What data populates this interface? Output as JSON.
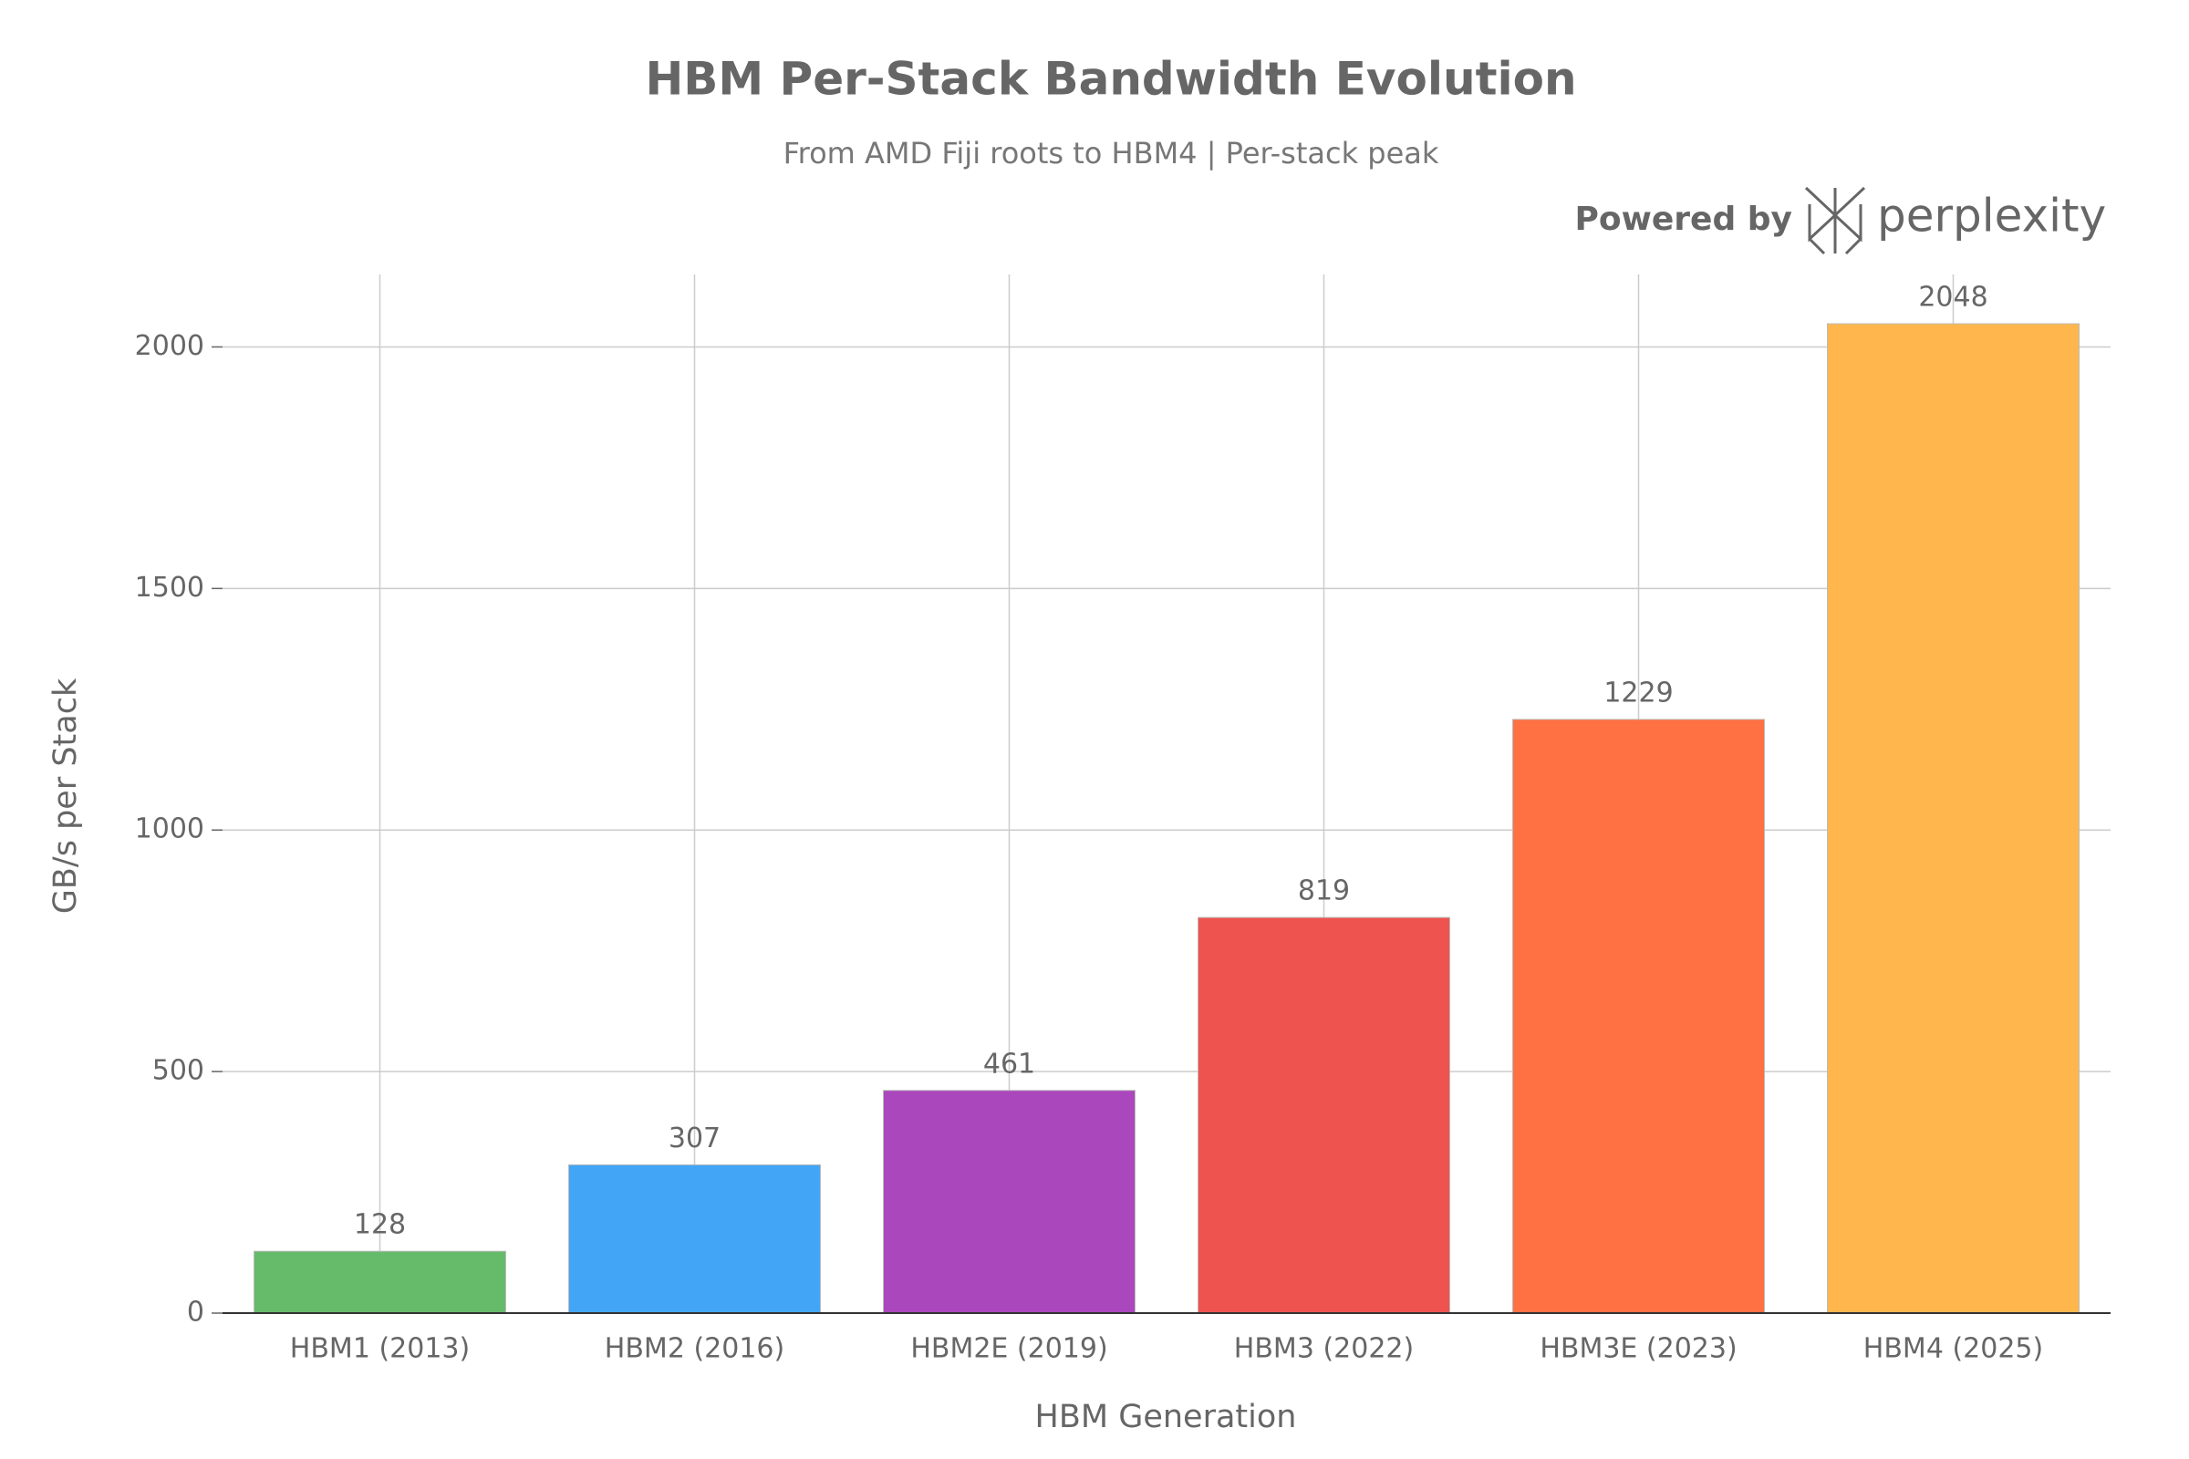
{
  "chart_data": {
    "type": "bar",
    "title": "HBM Per-Stack Bandwidth Evolution",
    "subtitle": "From AMD Fiji roots to HBM4 | Per-stack peak",
    "watermark": "Powered by",
    "brand": "perplexity",
    "x_label": "HBM Generation",
    "y_label": "GB/s per Stack",
    "categories": [
      "HBM1 (2013)",
      "HBM2 (2016)",
      "HBM2E (2019)",
      "HBM3 (2022)",
      "HBM3E (2023)",
      "HBM4 (2025)"
    ],
    "values": [
      128,
      307,
      461,
      819,
      1229,
      2048
    ],
    "colors": [
      "#66bb6a",
      "#42a5f5",
      "#ab47bc",
      "#ef5350",
      "#ff7043",
      "#ffb74d"
    ],
    "ylim": [
      0,
      2150
    ],
    "yticks": [
      0,
      500,
      1000,
      1500,
      2000
    ],
    "grid": true
  }
}
